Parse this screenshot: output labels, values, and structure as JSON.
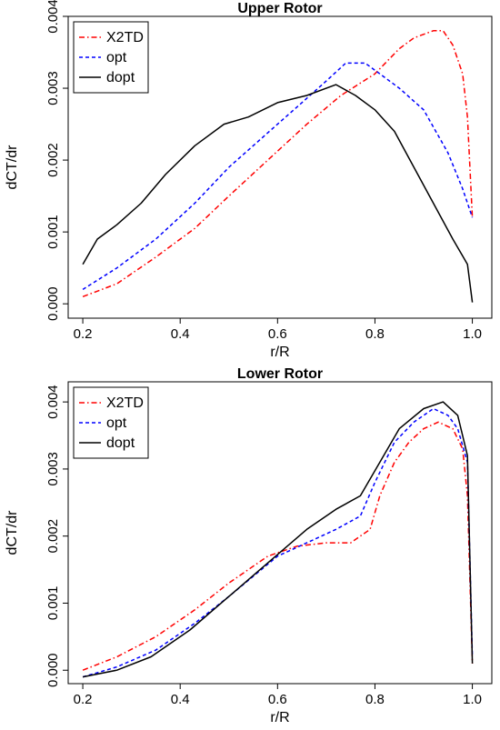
{
  "chart_data": [
    {
      "type": "line",
      "title": "Upper Rotor",
      "xlabel": "r/R",
      "ylabel": "dCT/dr",
      "xlim": [
        0.17,
        1.04
      ],
      "ylim": [
        -0.0002,
        0.004
      ],
      "xticks": [
        0.2,
        0.4,
        0.6,
        0.8,
        1.0
      ],
      "xtick_labels": [
        "0.2",
        "0.4",
        "0.6",
        "0.8",
        "1.0"
      ],
      "yticks": [
        0.0,
        0.001,
        0.002,
        0.003,
        0.004
      ],
      "ytick_labels": [
        "0.000",
        "0.001",
        "0.002",
        "0.003",
        "0.004"
      ],
      "grid": false,
      "legend_position": "top-left",
      "series": [
        {
          "name": "X2TD",
          "color": "#ff0000",
          "dash": "dashdot",
          "x": [
            0.2,
            0.27,
            0.35,
            0.43,
            0.5,
            0.58,
            0.66,
            0.73,
            0.8,
            0.85,
            0.88,
            0.92,
            0.94,
            0.96,
            0.98,
            0.99,
            1.0
          ],
          "y": [
            0.0001,
            0.00028,
            0.00065,
            0.00105,
            0.0015,
            0.002,
            0.0025,
            0.0029,
            0.0032,
            0.00355,
            0.0037,
            0.0038,
            0.0038,
            0.0036,
            0.0032,
            0.0026,
            0.0012
          ]
        },
        {
          "name": "opt",
          "color": "#0000ff",
          "dash": "dashed",
          "x": [
            0.2,
            0.27,
            0.35,
            0.43,
            0.5,
            0.55,
            0.6,
            0.65,
            0.7,
            0.74,
            0.78,
            0.81,
            0.85,
            0.9,
            0.95,
            0.98,
            1.0
          ],
          "y": [
            0.0002,
            0.0005,
            0.0009,
            0.0014,
            0.0019,
            0.0022,
            0.0025,
            0.0028,
            0.0031,
            0.00335,
            0.00335,
            0.0032,
            0.003,
            0.0027,
            0.0021,
            0.0016,
            0.0012
          ]
        },
        {
          "name": "dopt",
          "color": "#000000",
          "dash": "solid",
          "x": [
            0.2,
            0.23,
            0.27,
            0.32,
            0.37,
            0.43,
            0.49,
            0.54,
            0.6,
            0.66,
            0.72,
            0.76,
            0.8,
            0.84,
            0.88,
            0.92,
            0.96,
            0.99,
            1.0
          ],
          "y": [
            0.00055,
            0.0009,
            0.0011,
            0.0014,
            0.0018,
            0.0022,
            0.0025,
            0.0026,
            0.0028,
            0.0029,
            0.00305,
            0.0029,
            0.0027,
            0.0024,
            0.0019,
            0.0014,
            0.0009,
            0.00055,
            2e-05
          ]
        }
      ]
    },
    {
      "type": "line",
      "title": "Lower Rotor",
      "xlabel": "r/R",
      "ylabel": "dCT/dr",
      "xlim": [
        0.17,
        1.04
      ],
      "ylim": [
        -0.0002,
        0.0043
      ],
      "xticks": [
        0.2,
        0.4,
        0.6,
        0.8,
        1.0
      ],
      "xtick_labels": [
        "0.2",
        "0.4",
        "0.6",
        "0.8",
        "1.0"
      ],
      "yticks": [
        0.0,
        0.001,
        0.002,
        0.003,
        0.004
      ],
      "ytick_labels": [
        "0.000",
        "0.001",
        "0.002",
        "0.003",
        "0.004"
      ],
      "grid": false,
      "legend_position": "top-left",
      "series": [
        {
          "name": "X2TD",
          "color": "#ff0000",
          "dash": "dashdot",
          "x": [
            0.2,
            0.27,
            0.35,
            0.43,
            0.5,
            0.58,
            0.64,
            0.7,
            0.75,
            0.79,
            0.81,
            0.84,
            0.87,
            0.9,
            0.93,
            0.96,
            0.98,
            0.99,
            1.0
          ],
          "y": [
            0.0,
            0.0002,
            0.0005,
            0.0009,
            0.0013,
            0.0017,
            0.00185,
            0.0019,
            0.0019,
            0.0021,
            0.0026,
            0.0031,
            0.0034,
            0.0036,
            0.0037,
            0.0036,
            0.0033,
            0.0026,
            0.0001
          ]
        },
        {
          "name": "opt",
          "color": "#0000ff",
          "dash": "dashed",
          "x": [
            0.2,
            0.27,
            0.35,
            0.43,
            0.5,
            0.6,
            0.66,
            0.72,
            0.77,
            0.8,
            0.84,
            0.88,
            0.92,
            0.95,
            0.97,
            0.99,
            1.0
          ],
          "y": [
            -0.0001,
            5e-05,
            0.0003,
            0.0007,
            0.0011,
            0.0017,
            0.0019,
            0.0021,
            0.0023,
            0.0028,
            0.0034,
            0.0037,
            0.0039,
            0.0038,
            0.0036,
            0.0031,
            0.0002
          ]
        },
        {
          "name": "dopt",
          "color": "#000000",
          "dash": "solid",
          "x": [
            0.2,
            0.27,
            0.34,
            0.42,
            0.5,
            0.58,
            0.66,
            0.72,
            0.77,
            0.81,
            0.85,
            0.9,
            0.94,
            0.97,
            0.99,
            1.0
          ],
          "y": [
            -0.0001,
            0.0,
            0.0002,
            0.0006,
            0.0011,
            0.0016,
            0.0021,
            0.0024,
            0.0026,
            0.0031,
            0.0036,
            0.0039,
            0.004,
            0.0038,
            0.0032,
            0.0001
          ]
        }
      ]
    }
  ]
}
